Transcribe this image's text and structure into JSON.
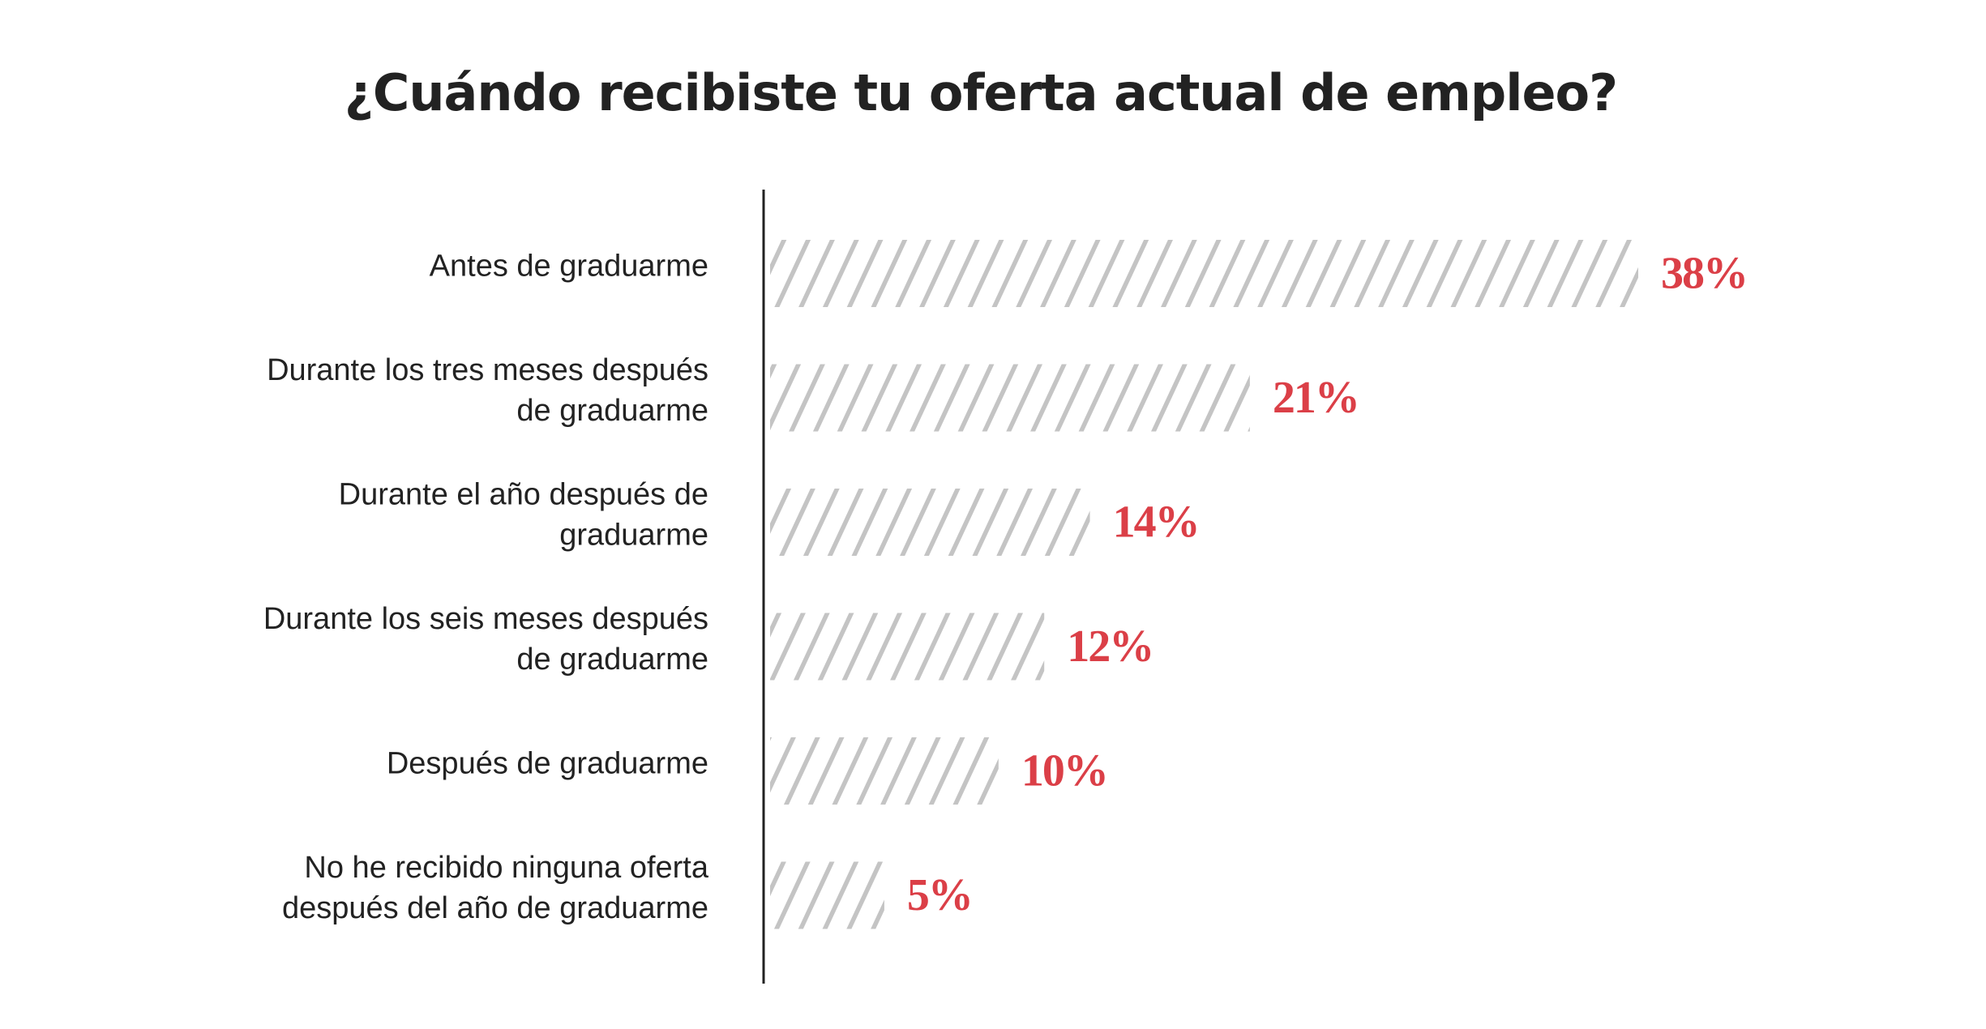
{
  "chart_data": {
    "type": "bar",
    "orientation": "horizontal",
    "title": "¿Cuándo recibiste tu oferta actual de empleo?",
    "categories": [
      [
        "Antes de graduarme"
      ],
      [
        "Durante los tres meses después",
        "de graduarme"
      ],
      [
        "Durante el año después de",
        "graduarme"
      ],
      [
        "Durante los seis meses después",
        "de graduarme"
      ],
      [
        "Después de graduarme"
      ],
      [
        "No he recibido ninguna oferta",
        "después del año de graduarme"
      ]
    ],
    "values": [
      38,
      21,
      14,
      12,
      10,
      5
    ],
    "value_labels": [
      "38%",
      "21%",
      "14%",
      "12%",
      "10%",
      "5%"
    ],
    "unit": "%",
    "xlim": [
      0,
      40
    ],
    "grid": false,
    "bar_fill": "diagonal-hatch",
    "colors": {
      "hatch": "#c4c4c4",
      "value_label": "#db3f47",
      "axis": "#222222",
      "text": "#222222"
    }
  }
}
